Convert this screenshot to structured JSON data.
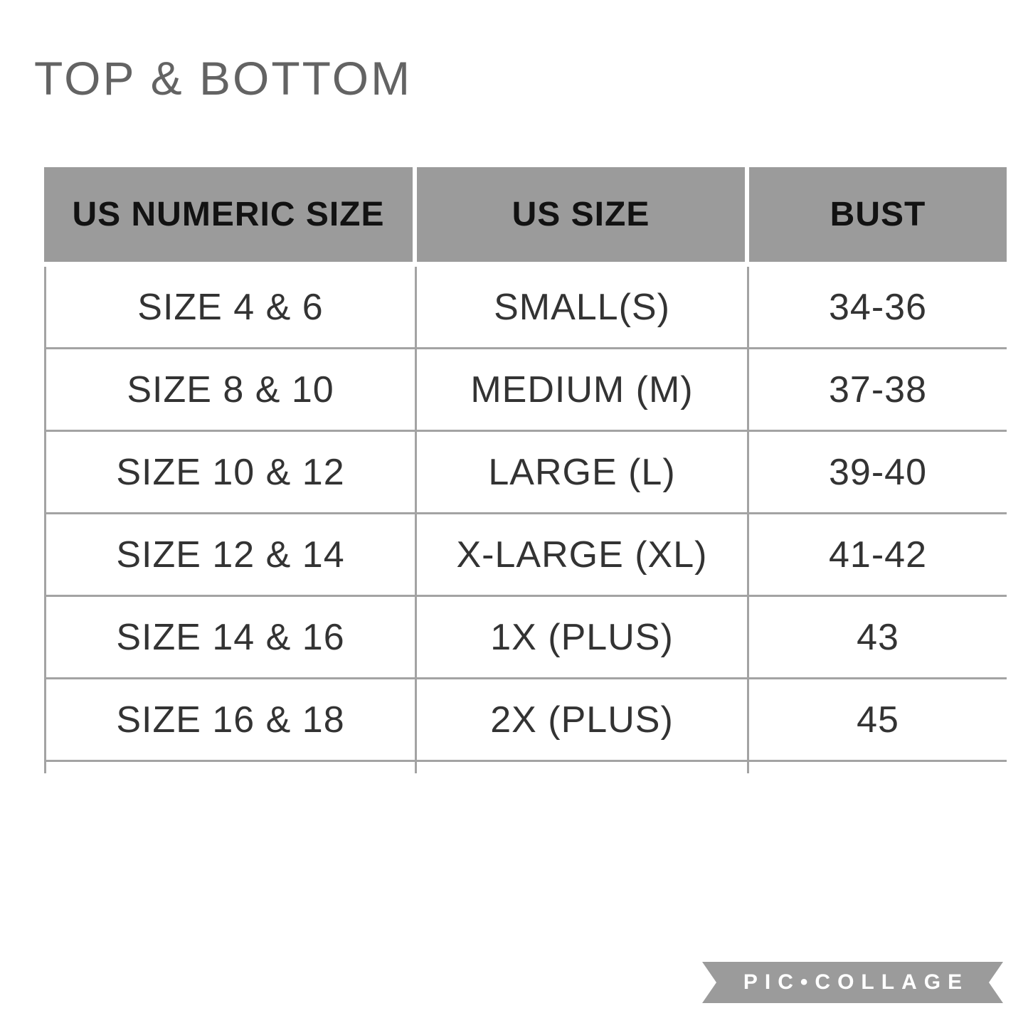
{
  "chart_data": {
    "type": "table",
    "title": "TOP & BOTTOM",
    "columns": [
      "US NUMERIC SIZE",
      "US SIZE",
      "BUST"
    ],
    "rows": [
      [
        "SIZE 4 & 6",
        "SMALL(S)",
        "34-36"
      ],
      [
        "SIZE 8 & 10",
        "MEDIUM (M)",
        "37-38"
      ],
      [
        "SIZE 10 & 12",
        "LARGE (L)",
        "39-40"
      ],
      [
        "SIZE 12 & 14",
        "X-LARGE (XL)",
        "41-42"
      ],
      [
        "SIZE 14 & 16",
        "1X (PLUS)",
        "43"
      ],
      [
        "SIZE 16 & 18",
        "2X (PLUS)",
        "45"
      ]
    ],
    "layout": {
      "header_style": "gray blocks separated by white gaps",
      "grid": "thin gray borders, no right border, table cropped at bottom"
    }
  },
  "watermark": {
    "text": "PIC•COLLAGE"
  },
  "colors": {
    "header_bg": "#9b9b9b",
    "grid_border": "#a3a3a3",
    "title_text": "#636363",
    "body_text": "#333333",
    "watermark_bg": "#9b9b9b",
    "watermark_text": "#ffffff"
  }
}
